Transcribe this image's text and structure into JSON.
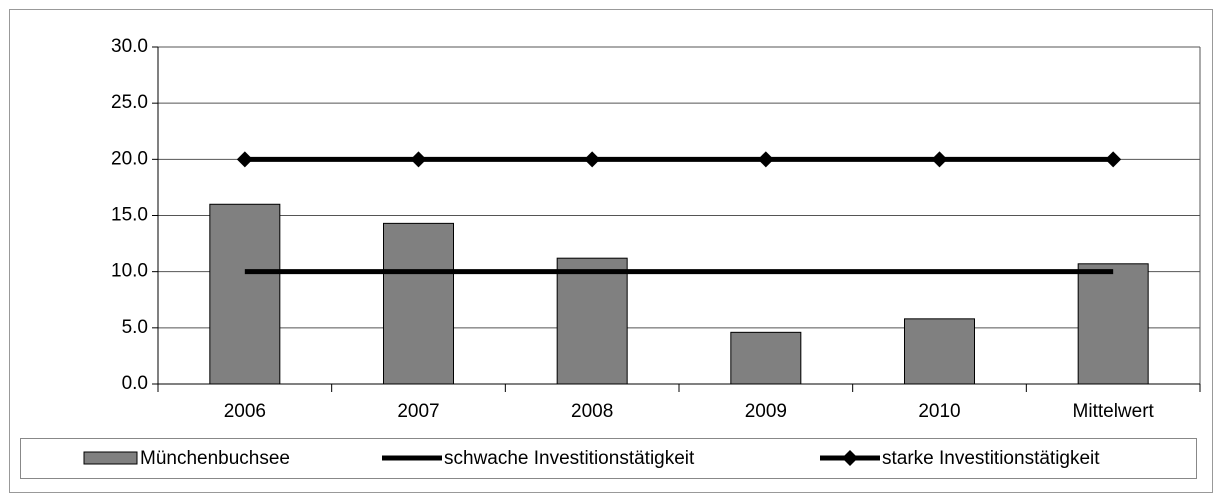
{
  "chart_data": {
    "type": "bar",
    "categories": [
      "2006",
      "2007",
      "2008",
      "2009",
      "2010",
      "Mittelwert"
    ],
    "series": [
      {
        "name": "Münchenbuchsee",
        "type": "bar",
        "color": "#808080",
        "values": [
          16.0,
          14.3,
          11.2,
          4.6,
          5.8,
          10.7
        ]
      },
      {
        "name": "schwache Investitionstätigkeit",
        "type": "line",
        "color": "#000000",
        "values": [
          10,
          10,
          10,
          10,
          10,
          10
        ]
      },
      {
        "name": "starke Investitionstätigkeit",
        "type": "line",
        "marker": "diamond",
        "color": "#000000",
        "values": [
          20,
          20,
          20,
          20,
          20,
          20
        ]
      }
    ],
    "ylim": [
      0,
      30
    ],
    "yticks": [
      {
        "value": 0,
        "label": "0.0"
      },
      {
        "value": 5,
        "label": "5.0"
      },
      {
        "value": 10,
        "label": "10.0"
      },
      {
        "value": 15,
        "label": "15.0"
      },
      {
        "value": 20,
        "label": "20.0"
      },
      {
        "value": 25,
        "label": "25.0"
      },
      {
        "value": 30,
        "label": "30.0"
      }
    ],
    "grid": true,
    "legend": "bottom"
  }
}
